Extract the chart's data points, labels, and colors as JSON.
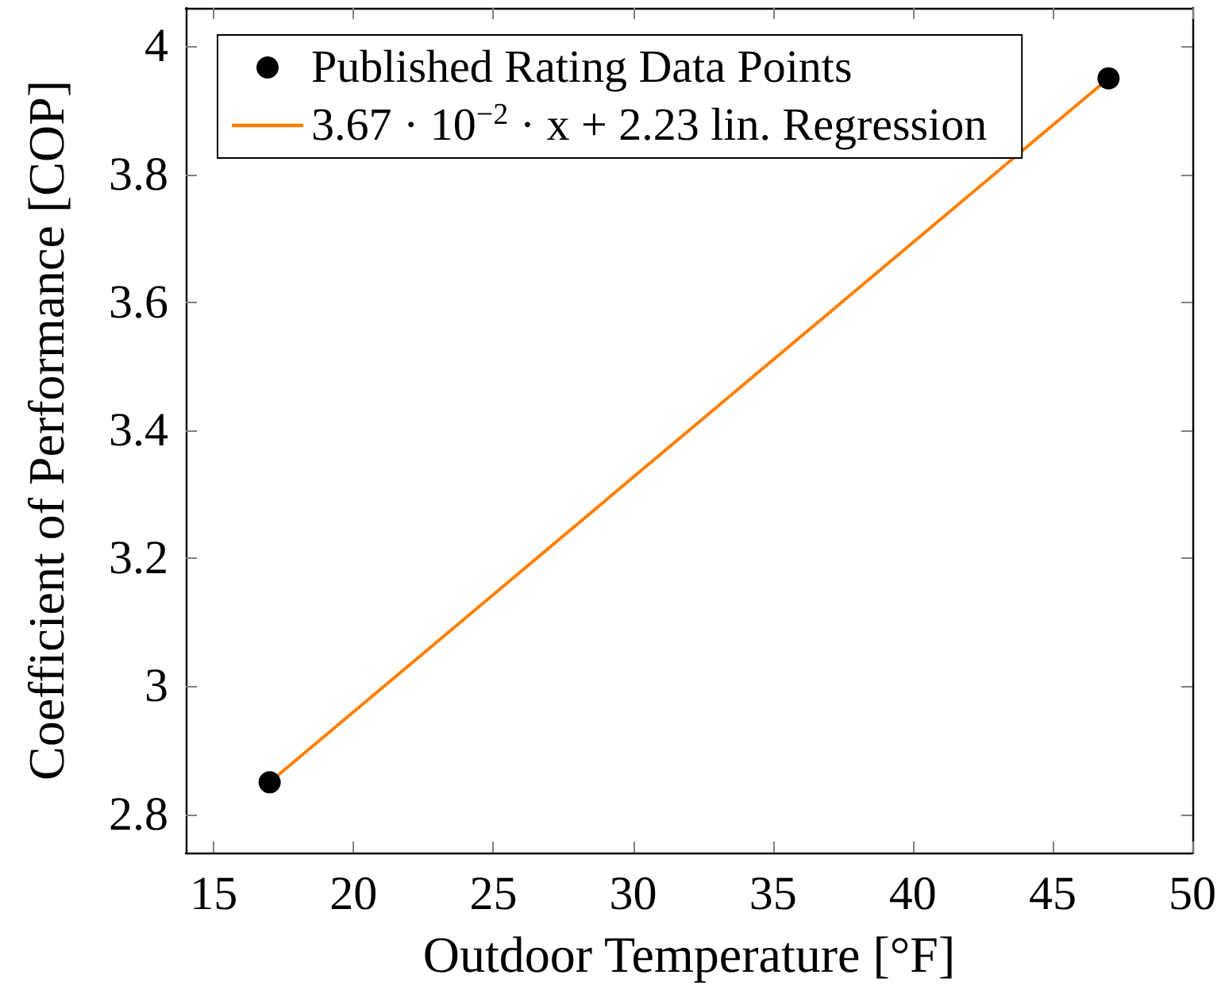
{
  "chart_data": {
    "type": "scatter",
    "xlabel": "Outdoor Temperature [°F]",
    "ylabel": "Coefficient of Performance [COP]",
    "xlim": [
      14,
      50
    ],
    "xticks": [
      15,
      20,
      25,
      30,
      35,
      40,
      45,
      50
    ],
    "ylim": [
      2.74,
      4.06
    ],
    "yticks": [
      2.8,
      3,
      3.2,
      3.4,
      3.6,
      3.8,
      4
    ],
    "grid": false,
    "legend": "top left",
    "x": [
      17,
      47
    ],
    "series": [
      {
        "name": "Published Rating Data Points",
        "color": "#000000",
        "marker": "circle",
        "values": [
          2.85,
          3.95
        ]
      },
      {
        "name": "3.67 · 10$^{−2}$ · x + 2.23 lin. Regression",
        "type": "line",
        "color": "#ff8000",
        "marker": "none",
        "line_style": "solid",
        "values": [
          2.85,
          3.95
        ]
      }
    ]
  }
}
